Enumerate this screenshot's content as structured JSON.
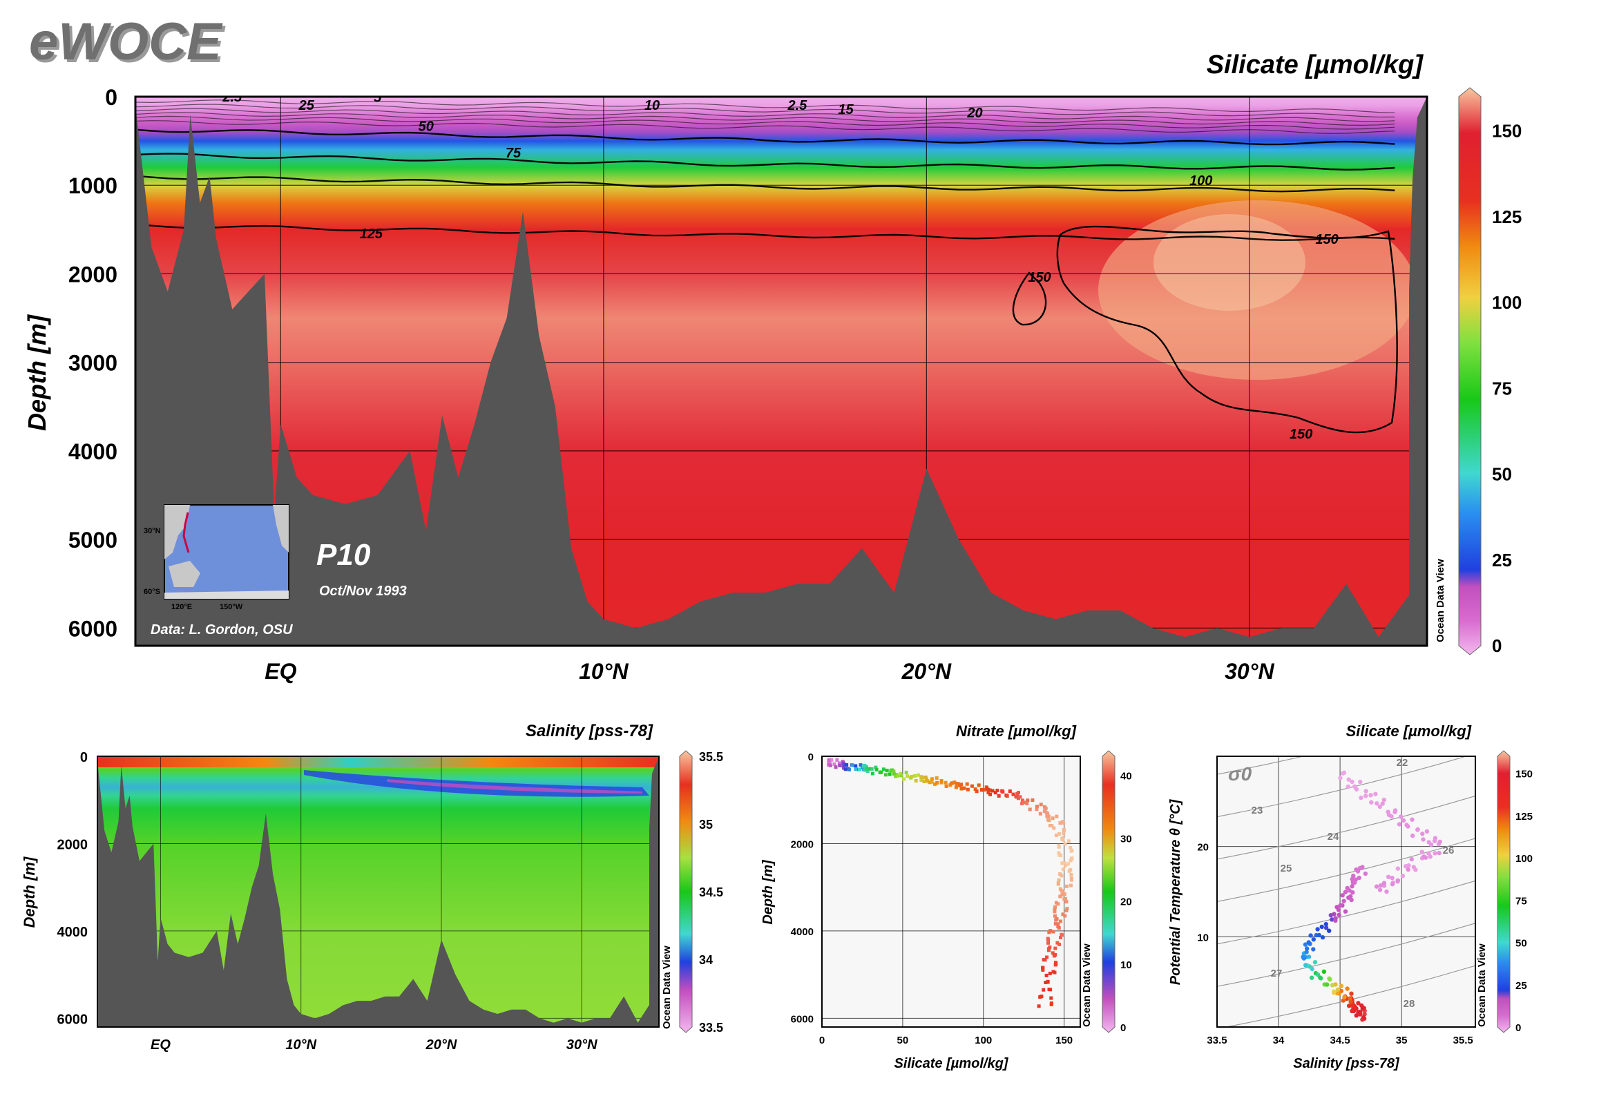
{
  "brand": "eWOCE",
  "colors": {
    "land": "#555555",
    "frame": "#000000",
    "brand_grey": "#707070"
  },
  "main_panel": {
    "title": "Silicate [µmol/kg]",
    "ylabel": "Depth [m]",
    "x_ticks": [
      "EQ",
      "10°N",
      "20°N",
      "30°N"
    ],
    "y_ticks": [
      "0",
      "1000",
      "2000",
      "3000",
      "4000",
      "5000",
      "6000"
    ],
    "colorbar_ticks": [
      "0",
      "25",
      "50",
      "75",
      "100",
      "125",
      "150"
    ],
    "contour_labels": [
      "2.5",
      "5",
      "25",
      "10",
      "2.5",
      "15",
      "20",
      "50",
      "75",
      "100",
      "125",
      "150",
      "150",
      "150"
    ],
    "section_name": "P10",
    "section_date": "Oct/Nov 1993",
    "credit": "Data: L. Gordon, OSU",
    "inset_labels": [
      "30°N",
      "60°S",
      "120°E",
      "150°W"
    ],
    "watermark": "Ocean Data View"
  },
  "salinity_panel": {
    "title": "Salinity [pss-78]",
    "ylabel": "Depth [m]",
    "x_ticks": [
      "EQ",
      "10°N",
      "20°N",
      "30°N"
    ],
    "y_ticks": [
      "0",
      "2000",
      "4000",
      "6000"
    ],
    "colorbar_ticks": [
      "33.5",
      "34",
      "34.5",
      "35",
      "35.5"
    ],
    "watermark": "Ocean Data View"
  },
  "nitrate_panel": {
    "title": "Nitrate [µmol/kg]",
    "xlabel": "Silicate [µmol/kg]",
    "ylabel": "Depth [m]",
    "x_ticks": [
      "0",
      "50",
      "100",
      "150"
    ],
    "y_ticks": [
      "0",
      "2000",
      "4000",
      "6000"
    ],
    "colorbar_ticks": [
      "0",
      "10",
      "20",
      "30",
      "40"
    ],
    "watermark": "Ocean Data View"
  },
  "ts_panel": {
    "title": "Silicate [µmol/kg]",
    "xlabel": "Salinity [pss-78]",
    "ylabel": "Potential Temperature θ [°C]",
    "x_ticks": [
      "33.5",
      "34",
      "34.5",
      "35",
      "35.5"
    ],
    "y_ticks": [
      "10",
      "20"
    ],
    "colorbar_ticks": [
      "0",
      "25",
      "50",
      "75",
      "100",
      "125",
      "150"
    ],
    "isopycnal_symbol": "σ0",
    "isopycnal_labels": [
      "22",
      "23",
      "24",
      "25",
      "26",
      "27",
      "28"
    ],
    "watermark": "Ocean Data View"
  },
  "chart_data": [
    {
      "type": "heatmap",
      "title": "Silicate [µmol/kg]",
      "ylabel": "Depth [m]",
      "xlim_deg": [
        -4.5,
        35.5
      ],
      "ylim": [
        0,
        6200
      ],
      "y_inverted": true,
      "x_ticks": [
        0,
        10,
        20,
        30
      ],
      "y_ticks": [
        0,
        1000,
        2000,
        3000,
        4000,
        5000,
        6000
      ],
      "colorbar_range": [
        0,
        160
      ],
      "contour_levels": [
        2.5,
        5,
        10,
        15,
        20,
        25,
        50,
        75,
        100,
        125,
        150
      ],
      "profile_depths": [
        0,
        100,
        200,
        300,
        400,
        500,
        600,
        800,
        1000,
        1200,
        1500,
        2000,
        2500,
        3000,
        4000,
        5000,
        6000
      ],
      "profile_values": [
        1,
        3,
        8,
        15,
        20,
        28,
        45,
        68,
        98,
        118,
        138,
        150,
        155,
        153,
        148,
        142,
        140
      ],
      "bottom_depth_profile": {
        "lat": [
          -4.5,
          -4,
          -3.5,
          -3,
          -2.8,
          -2.5,
          -2.2,
          -2,
          -1.5,
          -1,
          -0.5,
          -0.2,
          0,
          0.5,
          1,
          2,
          3,
          4,
          4.5,
          5,
          5.5,
          6,
          6.5,
          7,
          7.5,
          8,
          8.5,
          9,
          9.5,
          10,
          11,
          12,
          13,
          14,
          15,
          16,
          17,
          18,
          19,
          20,
          21,
          22,
          23,
          24,
          25,
          26,
          27,
          28,
          29,
          30,
          31,
          32,
          33,
          34,
          35,
          35.5
        ],
        "depth": [
          100,
          1700,
          2200,
          1500,
          200,
          1200,
          900,
          1600,
          2400,
          2200,
          2000,
          4700,
          3700,
          4300,
          4500,
          4600,
          4500,
          4000,
          4900,
          3600,
          4300,
          3700,
          3000,
          2500,
          1300,
          2700,
          3500,
          5100,
          5700,
          5900,
          6000,
          5900,
          5700,
          5600,
          5600,
          5500,
          5500,
          5100,
          5600,
          4200,
          5000,
          5600,
          5800,
          5900,
          5800,
          5800,
          6000,
          6100,
          6000,
          6100,
          6000,
          6000,
          5500,
          6100,
          5600,
          2000
        ]
      }
    },
    {
      "type": "heatmap",
      "title": "Salinity [pss-78]",
      "ylabel": "Depth [m]",
      "y_ticks": [
        0,
        2000,
        4000,
        6000
      ],
      "colorbar_range": [
        33.5,
        35.5
      ],
      "profile_depths": [
        0,
        100,
        300,
        500,
        700,
        900,
        1200,
        2000,
        4000,
        6000
      ],
      "profile_values": [
        35.2,
        34.8,
        34.6,
        34.3,
        34.15,
        34.3,
        34.45,
        34.6,
        34.68,
        34.7
      ]
    },
    {
      "type": "scatter",
      "title": "Nitrate [µmol/kg]",
      "xlabel": "Silicate [µmol/kg]",
      "ylabel": "Depth [m]",
      "xlim": [
        0,
        160
      ],
      "ylim": [
        0,
        6200
      ],
      "y_inverted": true,
      "colorbar_range": [
        0,
        43
      ],
      "x": [
        5,
        10,
        20,
        30,
        45,
        60,
        75,
        90,
        105,
        120,
        135,
        145,
        150,
        152,
        150,
        148,
        145,
        142,
        140,
        138
      ],
      "y": [
        100,
        200,
        250,
        300,
        400,
        500,
        600,
        700,
        800,
        900,
        1200,
        1500,
        2000,
        2500,
        3000,
        3500,
        4000,
        4500,
        5000,
        5800
      ],
      "color_values": [
        2,
        5,
        12,
        18,
        24,
        28,
        31,
        34,
        37,
        39,
        41,
        42,
        43,
        43,
        42,
        41,
        40,
        39,
        38,
        37
      ]
    },
    {
      "type": "scatter",
      "title": "Silicate [µmol/kg]",
      "xlabel": "Salinity [pss-78]",
      "ylabel": "Potential Temperature θ [°C]",
      "xlim": [
        33.5,
        35.6
      ],
      "ylim": [
        0,
        30
      ],
      "colorbar_range": [
        0,
        160
      ],
      "x": [
        34.7,
        34.65,
        34.6,
        34.55,
        34.45,
        34.3,
        34.2,
        34.3,
        34.45,
        34.55,
        34.6,
        34.7,
        34.5,
        34.7,
        34.9,
        35.1,
        35.3,
        35.0,
        34.8,
        35.4
      ],
      "y": [
        1.2,
        1.8,
        2.5,
        3.5,
        4.5,
        6,
        8,
        10,
        12,
        14,
        16,
        18,
        28,
        26,
        24,
        22,
        20,
        17,
        15,
        21
      ],
      "color_values": [
        150,
        145,
        135,
        120,
        100,
        60,
        40,
        30,
        20,
        15,
        10,
        8,
        2,
        3,
        4,
        5,
        4,
        3,
        6,
        5
      ],
      "isopycnals": [
        22,
        23,
        24,
        25,
        26,
        27,
        28
      ]
    }
  ]
}
